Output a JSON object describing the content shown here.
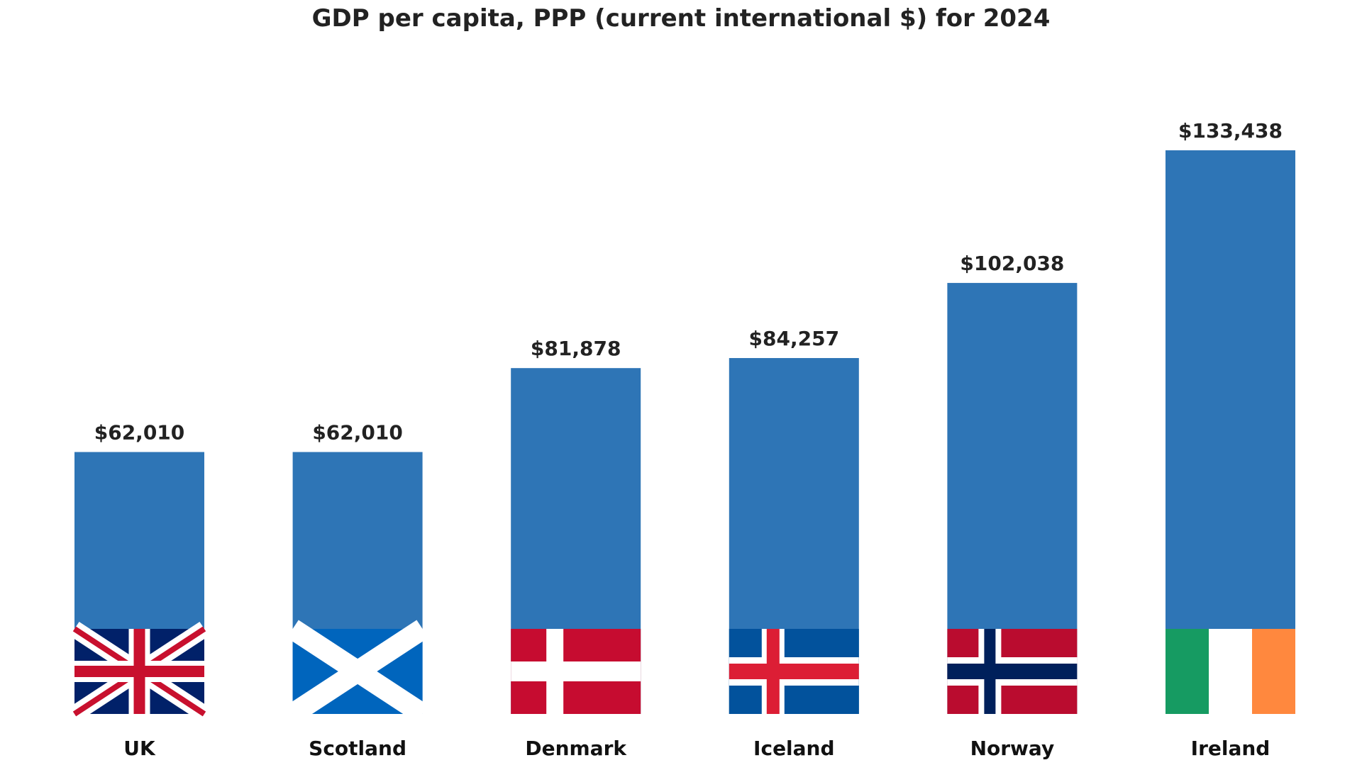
{
  "chart_data": {
    "type": "bar",
    "title": "GDP per capita, PPP (current international $) for 2024",
    "categories": [
      "UK",
      "Scotland",
      "Denmark",
      "Iceland",
      "Norway",
      "Ireland"
    ],
    "values": [
      62010,
      62010,
      81878,
      84257,
      102038,
      133438
    ],
    "value_labels": [
      "$62,010",
      "$62,010",
      "$81,878",
      "$84,257",
      "$102,038",
      "$133,438"
    ],
    "flags": [
      "uk-flag",
      "scotland-flag",
      "denmark-flag",
      "iceland-flag",
      "norway-flag",
      "ireland-flag"
    ],
    "bar_color": "#2e75b6",
    "xlabel": "",
    "ylabel": "",
    "grid": false,
    "axes_visible": false
  }
}
